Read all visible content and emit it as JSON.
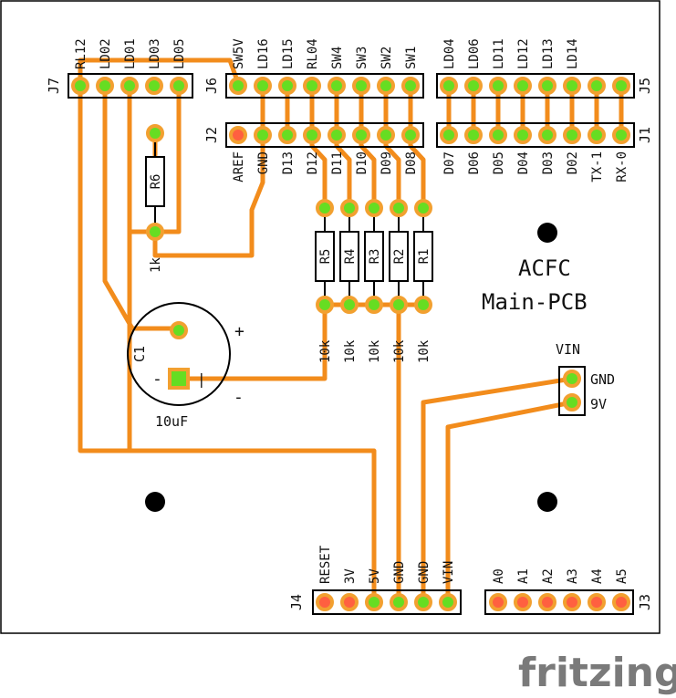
{
  "board": {
    "title_line1": "ACFC",
    "title_line2": "Main-PCB"
  },
  "brand": "fritzing",
  "headers": {
    "J7": {
      "label": "J7",
      "pins": [
        "RL12",
        "LD02",
        "LD01",
        "LD03",
        "LD05"
      ]
    },
    "J6": {
      "label": "J6",
      "pins": [
        "SW5V",
        "LD16",
        "LD15",
        "RL04",
        "SW4",
        "SW3",
        "SW2",
        "SW1"
      ]
    },
    "J2": {
      "label": "J2",
      "pins": [
        "AREF",
        "GND",
        "D13",
        "D12",
        "D11",
        "D10",
        "D09",
        "D08"
      ]
    },
    "J5": {
      "label": "J5",
      "pins": [
        "LD04",
        "LD06",
        "LD11",
        "LD12",
        "LD13",
        "LD14",
        "",
        ""
      ]
    },
    "J1": {
      "label": "J1",
      "pins": [
        "D07",
        "D06",
        "D05",
        "D04",
        "D03",
        "D02",
        "TX-1",
        "RX-0"
      ]
    },
    "J4": {
      "label": "J4",
      "pins": [
        "RESET",
        "3V",
        "5V",
        "GND",
        "GND",
        "VIN"
      ]
    },
    "J3": {
      "label": "J3",
      "pins": [
        "A0",
        "A1",
        "A2",
        "A3",
        "A4",
        "A5"
      ]
    }
  },
  "vin_connector": {
    "label": "VIN",
    "pins": [
      "GND",
      "9V"
    ]
  },
  "resistors": [
    {
      "ref": "R5",
      "value": "10k"
    },
    {
      "ref": "R4",
      "value": "10k"
    },
    {
      "ref": "R3",
      "value": "10k"
    },
    {
      "ref": "R2",
      "value": "10k"
    },
    {
      "ref": "R1",
      "value": "10k"
    },
    {
      "ref": "R6",
      "value": "1k"
    }
  ],
  "capacitor": {
    "ref": "C1",
    "value": "10uF",
    "plus": "+",
    "minus": "-"
  },
  "colors": {
    "trace": "#f28c1c",
    "pad_connected": "#66dd22",
    "pad_unconnected": "#ff6040",
    "pad_ring": "#f2a030",
    "outline": "#000000"
  }
}
